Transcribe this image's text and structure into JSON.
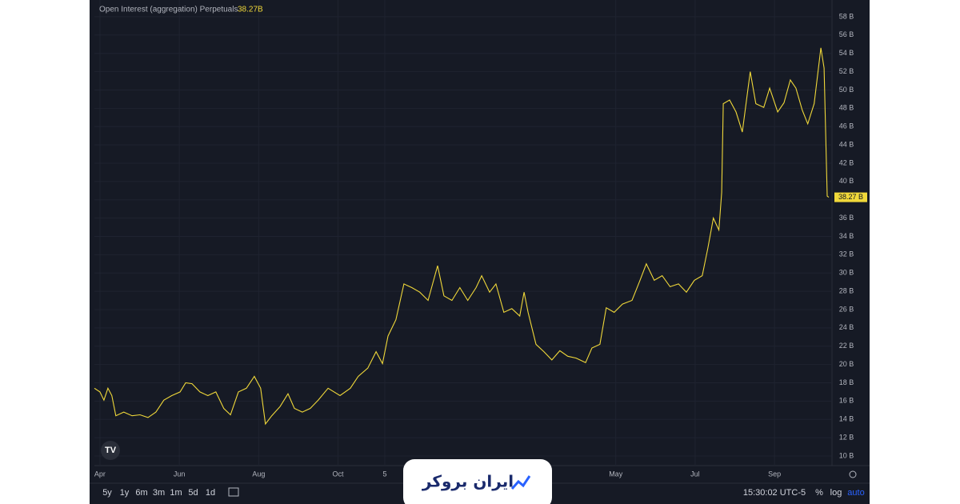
{
  "chart_data": {
    "type": "line",
    "title": "Open Interest (aggregation) Perpetuals",
    "legend_value": "38.27B",
    "x": [
      -0.14,
      0,
      0.1,
      0.2,
      0.3,
      0.4,
      0.6,
      0.81,
      1.01,
      1.21,
      1.41,
      1.61,
      1.81,
      2.02,
      2.16,
      2.32,
      2.52,
      2.72,
      2.92,
      3.12,
      3.29,
      3.49,
      3.69,
      3.89,
      4.05,
      4.17,
      4.33,
      4.54,
      4.74,
      4.9,
      5.1,
      5.3,
      5.5,
      5.75,
      6.05,
      6.31,
      6.51,
      6.75,
      6.96,
      7.12,
      7.26,
      7.46,
      7.66,
      7.86,
      8.06,
      8.27,
      8.51,
      8.67,
      8.87,
      9.07,
      9.27,
      9.48,
      9.62,
      9.82,
      9.98,
      10.18,
      10.38,
      10.58,
      10.69,
      10.79,
      10.99,
      11.19,
      11.39,
      11.59,
      11.79,
      12.0,
      12.24,
      12.4,
      12.6,
      12.76,
      12.96,
      13.17,
      13.41,
      13.61,
      13.77,
      13.97,
      14.17,
      14.37,
      14.58,
      14.78,
      14.98,
      15.18,
      15.32,
      15.46,
      15.6,
      15.67,
      15.71,
      15.87,
      16.03,
      16.19,
      16.39,
      16.53,
      16.73,
      16.88,
      17.08,
      17.24,
      17.4,
      17.54,
      17.7,
      17.84,
      18.0,
      18.17,
      18.25,
      18.33,
      18.37
    ],
    "series": [
      {
        "name": "Open Interest",
        "color": "#f0d83a",
        "values": [
          17.4,
          17.0,
          16.1,
          17.4,
          16.6,
          14.4,
          14.8,
          14.4,
          14.5,
          14.2,
          14.8,
          16.1,
          16.6,
          17.0,
          18.0,
          17.9,
          17.0,
          16.6,
          17.0,
          15.2,
          14.5,
          17.0,
          17.4,
          18.7,
          17.4,
          13.5,
          14.4,
          15.4,
          16.8,
          15.2,
          14.8,
          15.2,
          16.1,
          17.4,
          16.6,
          17.4,
          18.7,
          19.6,
          21.4,
          20.1,
          23.1,
          24.9,
          28.8,
          28.4,
          27.9,
          27.0,
          30.8,
          27.5,
          27.0,
          28.4,
          27.0,
          28.4,
          29.7,
          27.9,
          28.8,
          25.7,
          26.1,
          25.3,
          27.9,
          25.7,
          22.2,
          21.4,
          20.5,
          21.5,
          20.9,
          20.7,
          20.2,
          21.8,
          22.2,
          26.2,
          25.7,
          26.6,
          27.0,
          29.2,
          31.0,
          29.2,
          29.7,
          28.5,
          28.8,
          27.9,
          29.2,
          29.7,
          32.7,
          36.0,
          34.7,
          38.8,
          48.5,
          48.9,
          47.6,
          45.4,
          52.0,
          48.5,
          48.1,
          50.2,
          47.6,
          48.6,
          51.1,
          50.2,
          47.8,
          46.3,
          48.5,
          54.6,
          52.4,
          38.4,
          38.27
        ],
        "value_labels": [
          null,
          null,
          null,
          null,
          null,
          null,
          null,
          null,
          null,
          null,
          null,
          null,
          null,
          null,
          null,
          null,
          null,
          null,
          null,
          null,
          null,
          null,
          null,
          null,
          null,
          null,
          null,
          null,
          null,
          null,
          null,
          null,
          null,
          null,
          null,
          null,
          null,
          null,
          null,
          null,
          null,
          null,
          null,
          null,
          null,
          null,
          null,
          null,
          null,
          null,
          null,
          null,
          null,
          null,
          null,
          null,
          null,
          null,
          null,
          null,
          null,
          null,
          null,
          null,
          null,
          null,
          null,
          null,
          null,
          null,
          null,
          null,
          null,
          null,
          null,
          null,
          null,
          null,
          null,
          null,
          null,
          null,
          null,
          null,
          null,
          null,
          null,
          null,
          null,
          null,
          null,
          null,
          null,
          null,
          null,
          null,
          null,
          null,
          null,
          null,
          null,
          null,
          null,
          null,
          "38.27 B"
        ]
      }
    ],
    "xlim": [
      -0.14,
      18.45
    ],
    "xticks": [
      {
        "value": 0,
        "label": "Apr"
      },
      {
        "value": 2,
        "label": "Jun"
      },
      {
        "value": 4,
        "label": "Aug"
      },
      {
        "value": 6,
        "label": "Oct"
      },
      {
        "value": 7.18,
        "label": "5"
      },
      {
        "value": 13,
        "label": "May"
      },
      {
        "value": 15,
        "label": "Jul"
      },
      {
        "value": 17,
        "label": "Sep"
      }
    ],
    "ylim": [
      8.95,
      59.83
    ],
    "yticks": [
      {
        "value": 10,
        "label": "10 B"
      },
      {
        "value": 12,
        "label": "12 B"
      },
      {
        "value": 14,
        "label": "14 B"
      },
      {
        "value": 16,
        "label": "16 B"
      },
      {
        "value": 18,
        "label": "18 B"
      },
      {
        "value": 20,
        "label": "20 B"
      },
      {
        "value": 22,
        "label": "22 B"
      },
      {
        "value": 24,
        "label": "24 B"
      },
      {
        "value": 26,
        "label": "26 B"
      },
      {
        "value": 28,
        "label": "28 B"
      },
      {
        "value": 30,
        "label": "30 B"
      },
      {
        "value": 32,
        "label": "32 B"
      },
      {
        "value": 34,
        "label": "34 B"
      },
      {
        "value": 36,
        "label": "36 B"
      },
      {
        "value": 38,
        "label": "38 B"
      },
      {
        "value": 40,
        "label": "40 B"
      },
      {
        "value": 42,
        "label": "42 B"
      },
      {
        "value": 44,
        "label": "44 B"
      },
      {
        "value": 46,
        "label": "46 B"
      },
      {
        "value": 48,
        "label": "48 B"
      },
      {
        "value": 50,
        "label": "50 B"
      },
      {
        "value": 52,
        "label": "52 B"
      },
      {
        "value": 54,
        "label": "54 B"
      },
      {
        "value": 56,
        "label": "56 B"
      },
      {
        "value": 58,
        "label": "58 B"
      }
    ],
    "grid": true
  },
  "toolbar": {
    "ranges": [
      "5y",
      "1y",
      "6m",
      "3m",
      "1m",
      "5d",
      "1d"
    ],
    "time": "15:30:02 UTC-5",
    "percent": "%",
    "log": "log",
    "auto": "auto"
  },
  "watermark": "ایران بروکر"
}
